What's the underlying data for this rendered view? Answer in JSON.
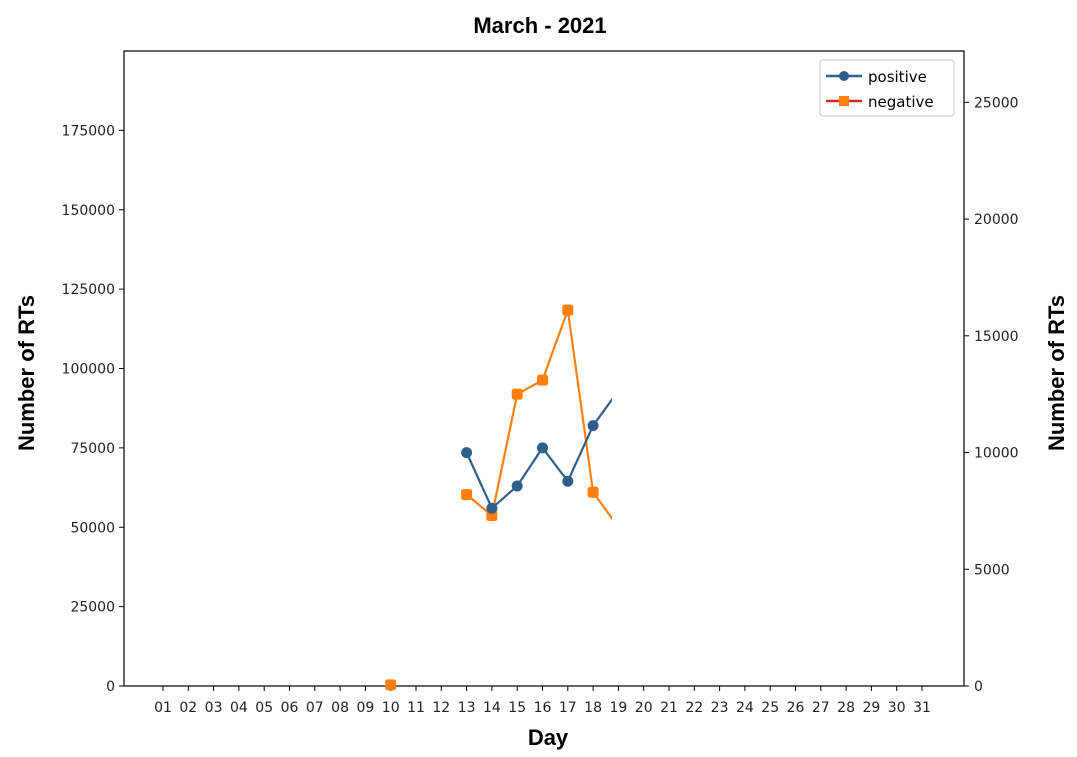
{
  "chart_data": {
    "type": "line",
    "title": "March - 2021",
    "xlabel": "Day",
    "ylabel_left": "Number of RTs",
    "ylabel_right": "Number of RTs",
    "categories": [
      "01",
      "02",
      "03",
      "04",
      "05",
      "06",
      "07",
      "08",
      "09",
      "10",
      "11",
      "12",
      "13",
      "14",
      "15",
      "16",
      "17",
      "18",
      "19",
      "20",
      "21",
      "22",
      "23",
      "24",
      "25",
      "26",
      "27",
      "28",
      "29",
      "30",
      "31"
    ],
    "y_left": {
      "range": [
        0,
        200000
      ],
      "ticks": [
        0,
        25000,
        50000,
        75000,
        100000,
        125000,
        150000,
        175000
      ]
    },
    "y_right": {
      "range": [
        0,
        27200
      ],
      "ticks": [
        0,
        5000,
        10000,
        15000,
        20000,
        25000
      ]
    },
    "grid": false,
    "legend_position": "top-right",
    "series": [
      {
        "name": "positive",
        "color": "#2e5f8a",
        "marker": "circle",
        "axis": "left",
        "points": [
          {
            "day": "13",
            "value": 73500
          },
          {
            "day": "14",
            "value": 56000
          },
          {
            "day": "15",
            "value": 63000
          },
          {
            "day": "16",
            "value": 75000
          },
          {
            "day": "17",
            "value": 64500
          },
          {
            "day": "18",
            "value": 82000
          },
          {
            "day": "19",
            "value": 93000
          }
        ]
      },
      {
        "name": "negative",
        "color": "#ff7f0e",
        "legend_line_color": "#d62728",
        "marker": "square",
        "axis": "right",
        "points": [
          {
            "day": "10",
            "value": 50
          },
          {
            "day": "13",
            "value": 8200
          },
          {
            "day": "14",
            "value": 7300
          },
          {
            "day": "15",
            "value": 12500
          },
          {
            "day": "16",
            "value": 13100
          },
          {
            "day": "17",
            "value": 16100
          },
          {
            "day": "18",
            "value": 8300
          },
          {
            "day": "19",
            "value": 6800
          }
        ]
      }
    ]
  }
}
